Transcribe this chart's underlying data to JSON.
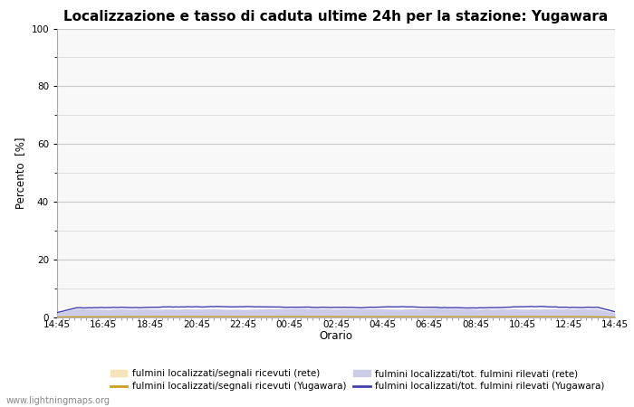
{
  "title": "Localizzazione e tasso di caduta ultime 24h per la stazione: Yugawara",
  "ylabel": "Percento  [%]",
  "xlabel": "Orario",
  "watermark": "www.lightningmaps.org",
  "ylim": [
    0,
    100
  ],
  "yticks": [
    0,
    20,
    40,
    60,
    80,
    100
  ],
  "yticks_minor": [
    10,
    30,
    50,
    70,
    90
  ],
  "x_labels": [
    "14:45",
    "16:45",
    "18:45",
    "20:45",
    "22:45",
    "00:45",
    "02:45",
    "04:45",
    "06:45",
    "08:45",
    "10:45",
    "12:45",
    "14:45"
  ],
  "n_points": 289,
  "fill_rete_color": "#f5e0b0",
  "fill_rete_alpha": 0.85,
  "fill_tot_rete_color": "#c8c8e8",
  "fill_tot_rete_alpha": 0.9,
  "line_yugawara_segnali_color": "#c8a020",
  "line_yugawara_tot_color": "#4040b0",
  "line_yugawara_tot_lw": 1.0,
  "line_yugawara_segnali_lw": 1.0,
  "bg_color": "#f8f8f8",
  "grid_color": "#cccccc",
  "title_fontsize": 11,
  "legend_fontsize": 7.5,
  "tick_fontsize": 7.5,
  "label_fontsize": 8.5,
  "rete_segnali_mean": 0.5,
  "tot_rete_mean": 3.0,
  "yugawara_segnali_mean": 0.3,
  "yugawara_tot_mean": 3.5
}
